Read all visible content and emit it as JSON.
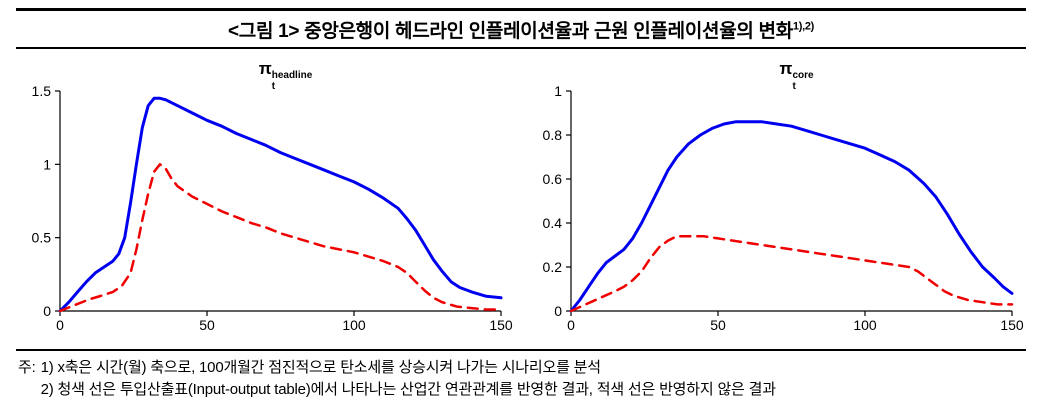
{
  "figure": {
    "title": "<그림 1> 중앙은행이 헤드라인 인플레이션율과 근원 인플레이션율의 변화",
    "title_superscript": "1),2)"
  },
  "chart_meta": [
    {
      "symbol": "π",
      "sub": "t",
      "sup": "headline"
    },
    {
      "symbol": "π",
      "sub": "t",
      "sup": "core"
    }
  ],
  "footnotes": {
    "label": "주:",
    "items": [
      "1) x축은 시간(월) 축으로, 100개월간 점진적으로 탄소세를 상승시켜 나가는 시나리오를 분석",
      "2) 청색 선은 투입산출표(Input-output table)에서 나타나는 산업간 연관관계를 반영한 결과, 적색 선은 반영하지 않은 결과"
    ]
  },
  "colors": {
    "blue_line": "#0000f0",
    "red_line": "#f00000",
    "axis": "#000000"
  },
  "chart_data": [
    {
      "type": "line",
      "title": "pi_t^headline",
      "xlabel": "",
      "ylabel": "",
      "xlim": [
        0,
        150
      ],
      "ylim": [
        0,
        1.5
      ],
      "xticks": [
        0,
        50,
        100,
        150
      ],
      "yticks": [
        0,
        0.5,
        1,
        1.5
      ],
      "grid": false,
      "legend": "none",
      "series": [
        {
          "name": "headline inflation with input-output linkages",
          "color": "#0000f0",
          "style": "solid",
          "width": 3,
          "points": [
            [
              0,
              0
            ],
            [
              3,
              0.06
            ],
            [
              6,
              0.13
            ],
            [
              9,
              0.2
            ],
            [
              12,
              0.26
            ],
            [
              15,
              0.3
            ],
            [
              18,
              0.34
            ],
            [
              20,
              0.39
            ],
            [
              22,
              0.5
            ],
            [
              24,
              0.74
            ],
            [
              26,
              1.0
            ],
            [
              28,
              1.25
            ],
            [
              30,
              1.4
            ],
            [
              32,
              1.45
            ],
            [
              34,
              1.45
            ],
            [
              36,
              1.44
            ],
            [
              40,
              1.4
            ],
            [
              45,
              1.35
            ],
            [
              50,
              1.3
            ],
            [
              55,
              1.26
            ],
            [
              60,
              1.21
            ],
            [
              65,
              1.17
            ],
            [
              70,
              1.13
            ],
            [
              75,
              1.08
            ],
            [
              80,
              1.04
            ],
            [
              85,
              1.0
            ],
            [
              90,
              0.96
            ],
            [
              95,
              0.92
            ],
            [
              100,
              0.88
            ],
            [
              105,
              0.83
            ],
            [
              110,
              0.77
            ],
            [
              115,
              0.7
            ],
            [
              118,
              0.63
            ],
            [
              121,
              0.55
            ],
            [
              124,
              0.45
            ],
            [
              127,
              0.35
            ],
            [
              130,
              0.27
            ],
            [
              133,
              0.2
            ],
            [
              136,
              0.16
            ],
            [
              140,
              0.13
            ],
            [
              145,
              0.1
            ],
            [
              150,
              0.09
            ]
          ]
        },
        {
          "name": "headline inflation without input-output linkages",
          "color": "#f00000",
          "style": "dashed",
          "width": 2.5,
          "points": [
            [
              0,
              0
            ],
            [
              5,
              0.04
            ],
            [
              10,
              0.08
            ],
            [
              15,
              0.11
            ],
            [
              18,
              0.13
            ],
            [
              21,
              0.17
            ],
            [
              24,
              0.26
            ],
            [
              26,
              0.42
            ],
            [
              28,
              0.62
            ],
            [
              30,
              0.8
            ],
            [
              32,
              0.95
            ],
            [
              34,
              1.0
            ],
            [
              36,
              0.97
            ],
            [
              38,
              0.9
            ],
            [
              40,
              0.85
            ],
            [
              45,
              0.78
            ],
            [
              50,
              0.73
            ],
            [
              55,
              0.68
            ],
            [
              60,
              0.64
            ],
            [
              65,
              0.6
            ],
            [
              70,
              0.57
            ],
            [
              75,
              0.53
            ],
            [
              80,
              0.5
            ],
            [
              85,
              0.47
            ],
            [
              90,
              0.44
            ],
            [
              95,
              0.42
            ],
            [
              100,
              0.4
            ],
            [
              105,
              0.37
            ],
            [
              110,
              0.34
            ],
            [
              115,
              0.3
            ],
            [
              118,
              0.26
            ],
            [
              121,
              0.2
            ],
            [
              124,
              0.14
            ],
            [
              127,
              0.09
            ],
            [
              130,
              0.06
            ],
            [
              135,
              0.03
            ],
            [
              140,
              0.02
            ],
            [
              145,
              0.01
            ],
            [
              150,
              0.01
            ]
          ]
        }
      ]
    },
    {
      "type": "line",
      "title": "pi_t^core",
      "xlabel": "",
      "ylabel": "",
      "xlim": [
        0,
        150
      ],
      "ylim": [
        0,
        1
      ],
      "xticks": [
        0,
        50,
        100,
        150
      ],
      "yticks": [
        0,
        0.2,
        0.4,
        0.6,
        0.8,
        1
      ],
      "grid": false,
      "legend": "none",
      "series": [
        {
          "name": "core inflation with input-output linkages",
          "color": "#0000f0",
          "style": "solid",
          "width": 3,
          "points": [
            [
              0,
              0
            ],
            [
              3,
              0.05
            ],
            [
              6,
              0.11
            ],
            [
              9,
              0.17
            ],
            [
              12,
              0.22
            ],
            [
              15,
              0.25
            ],
            [
              18,
              0.28
            ],
            [
              21,
              0.33
            ],
            [
              24,
              0.4
            ],
            [
              27,
              0.48
            ],
            [
              30,
              0.56
            ],
            [
              33,
              0.64
            ],
            [
              36,
              0.7
            ],
            [
              40,
              0.76
            ],
            [
              44,
              0.8
            ],
            [
              48,
              0.83
            ],
            [
              52,
              0.85
            ],
            [
              56,
              0.86
            ],
            [
              60,
              0.86
            ],
            [
              65,
              0.86
            ],
            [
              70,
              0.85
            ],
            [
              75,
              0.84
            ],
            [
              80,
              0.82
            ],
            [
              85,
              0.8
            ],
            [
              90,
              0.78
            ],
            [
              95,
              0.76
            ],
            [
              100,
              0.74
            ],
            [
              105,
              0.71
            ],
            [
              110,
              0.68
            ],
            [
              115,
              0.64
            ],
            [
              120,
              0.58
            ],
            [
              124,
              0.52
            ],
            [
              128,
              0.44
            ],
            [
              132,
              0.35
            ],
            [
              136,
              0.27
            ],
            [
              140,
              0.2
            ],
            [
              144,
              0.15
            ],
            [
              147,
              0.11
            ],
            [
              150,
              0.08
            ]
          ]
        },
        {
          "name": "core inflation without input-output linkages",
          "color": "#f00000",
          "style": "dashed",
          "width": 2.5,
          "points": [
            [
              0,
              0
            ],
            [
              5,
              0.03
            ],
            [
              10,
              0.06
            ],
            [
              15,
              0.09
            ],
            [
              18,
              0.11
            ],
            [
              21,
              0.14
            ],
            [
              24,
              0.18
            ],
            [
              27,
              0.24
            ],
            [
              30,
              0.29
            ],
            [
              33,
              0.32
            ],
            [
              36,
              0.34
            ],
            [
              40,
              0.34
            ],
            [
              45,
              0.34
            ],
            [
              50,
              0.33
            ],
            [
              55,
              0.32
            ],
            [
              60,
              0.31
            ],
            [
              65,
              0.3
            ],
            [
              70,
              0.29
            ],
            [
              75,
              0.28
            ],
            [
              80,
              0.27
            ],
            [
              85,
              0.26
            ],
            [
              90,
              0.25
            ],
            [
              95,
              0.24
            ],
            [
              100,
              0.23
            ],
            [
              105,
              0.22
            ],
            [
              110,
              0.21
            ],
            [
              115,
              0.2
            ],
            [
              118,
              0.18
            ],
            [
              121,
              0.15
            ],
            [
              124,
              0.12
            ],
            [
              127,
              0.09
            ],
            [
              130,
              0.07
            ],
            [
              135,
              0.05
            ],
            [
              140,
              0.04
            ],
            [
              145,
              0.03
            ],
            [
              150,
              0.03
            ]
          ]
        }
      ]
    }
  ]
}
